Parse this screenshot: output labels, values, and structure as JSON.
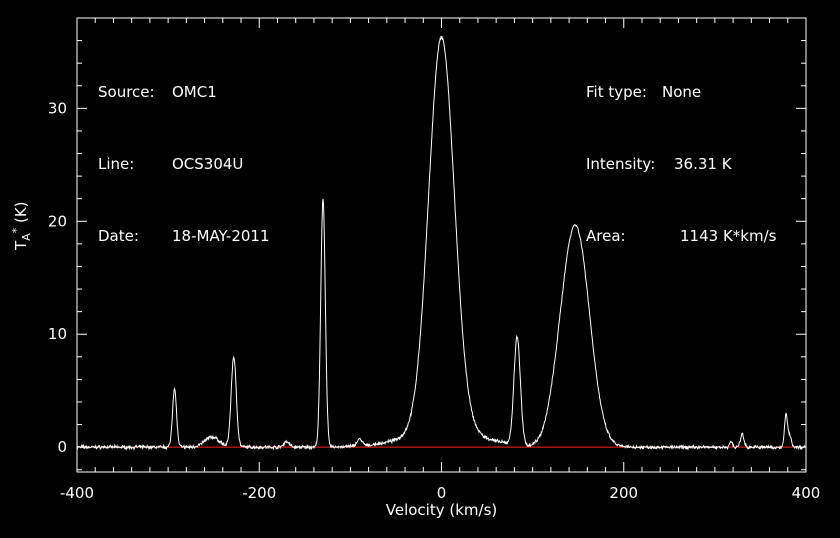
{
  "info_left": {
    "source_label": "Source:",
    "source_value": "OMC1",
    "line_label": "Line:",
    "line_value": "OCS304U",
    "date_label": "Date:",
    "date_value": "18-MAY-2011"
  },
  "info_right": {
    "fit_label": "Fit type:",
    "fit_value": "None",
    "intensity_label": "Intensity:",
    "intensity_value": "36.31 K",
    "area_label": "Area:",
    "area_value": "1143 K*km/s"
  },
  "chart_data": {
    "type": "line",
    "xlabel": "Velocity (km/s)",
    "ylabel_main": "T",
    "ylabel_sub": "A",
    "ylabel_sup": "*",
    "ylabel_unit": "(K)",
    "xlim": [
      -400,
      400
    ],
    "ylim": [
      -2.2,
      38
    ],
    "xticks": [
      -400,
      -200,
      0,
      200,
      400
    ],
    "yticks": [
      0,
      10,
      20,
      30
    ],
    "baseline_color": "#ff2020",
    "line_color": "#ffffff",
    "background": "#000000",
    "components": [
      {
        "center": 0,
        "height": 34.8,
        "width": 14
      },
      {
        "center": 3,
        "height": 1.5,
        "width": 40
      },
      {
        "center": 148,
        "height": 18.8,
        "width": 15
      },
      {
        "center": 130,
        "height": 2.5,
        "width": 12
      },
      {
        "center": 83,
        "height": 9.6,
        "width": 3.5
      },
      {
        "center": -130,
        "height": 22.0,
        "width": 2.5
      },
      {
        "center": -228,
        "height": 8.0,
        "width": 2.8
      },
      {
        "center": -293,
        "height": 5.2,
        "width": 2.2
      },
      {
        "center": -252,
        "height": 0.9,
        "width": 8
      },
      {
        "center": -90,
        "height": 0.6,
        "width": 3
      },
      {
        "center": -170,
        "height": 0.5,
        "width": 3
      },
      {
        "center": 330,
        "height": 1.2,
        "width": 1.8
      },
      {
        "center": 318,
        "height": 0.5,
        "width": 1.5
      },
      {
        "center": 378,
        "height": 2.8,
        "width": 1.6
      },
      {
        "center": 382,
        "height": 1.0,
        "width": 2.0
      }
    ],
    "noise_amplitude": 0.18,
    "baseline_value": 0
  }
}
